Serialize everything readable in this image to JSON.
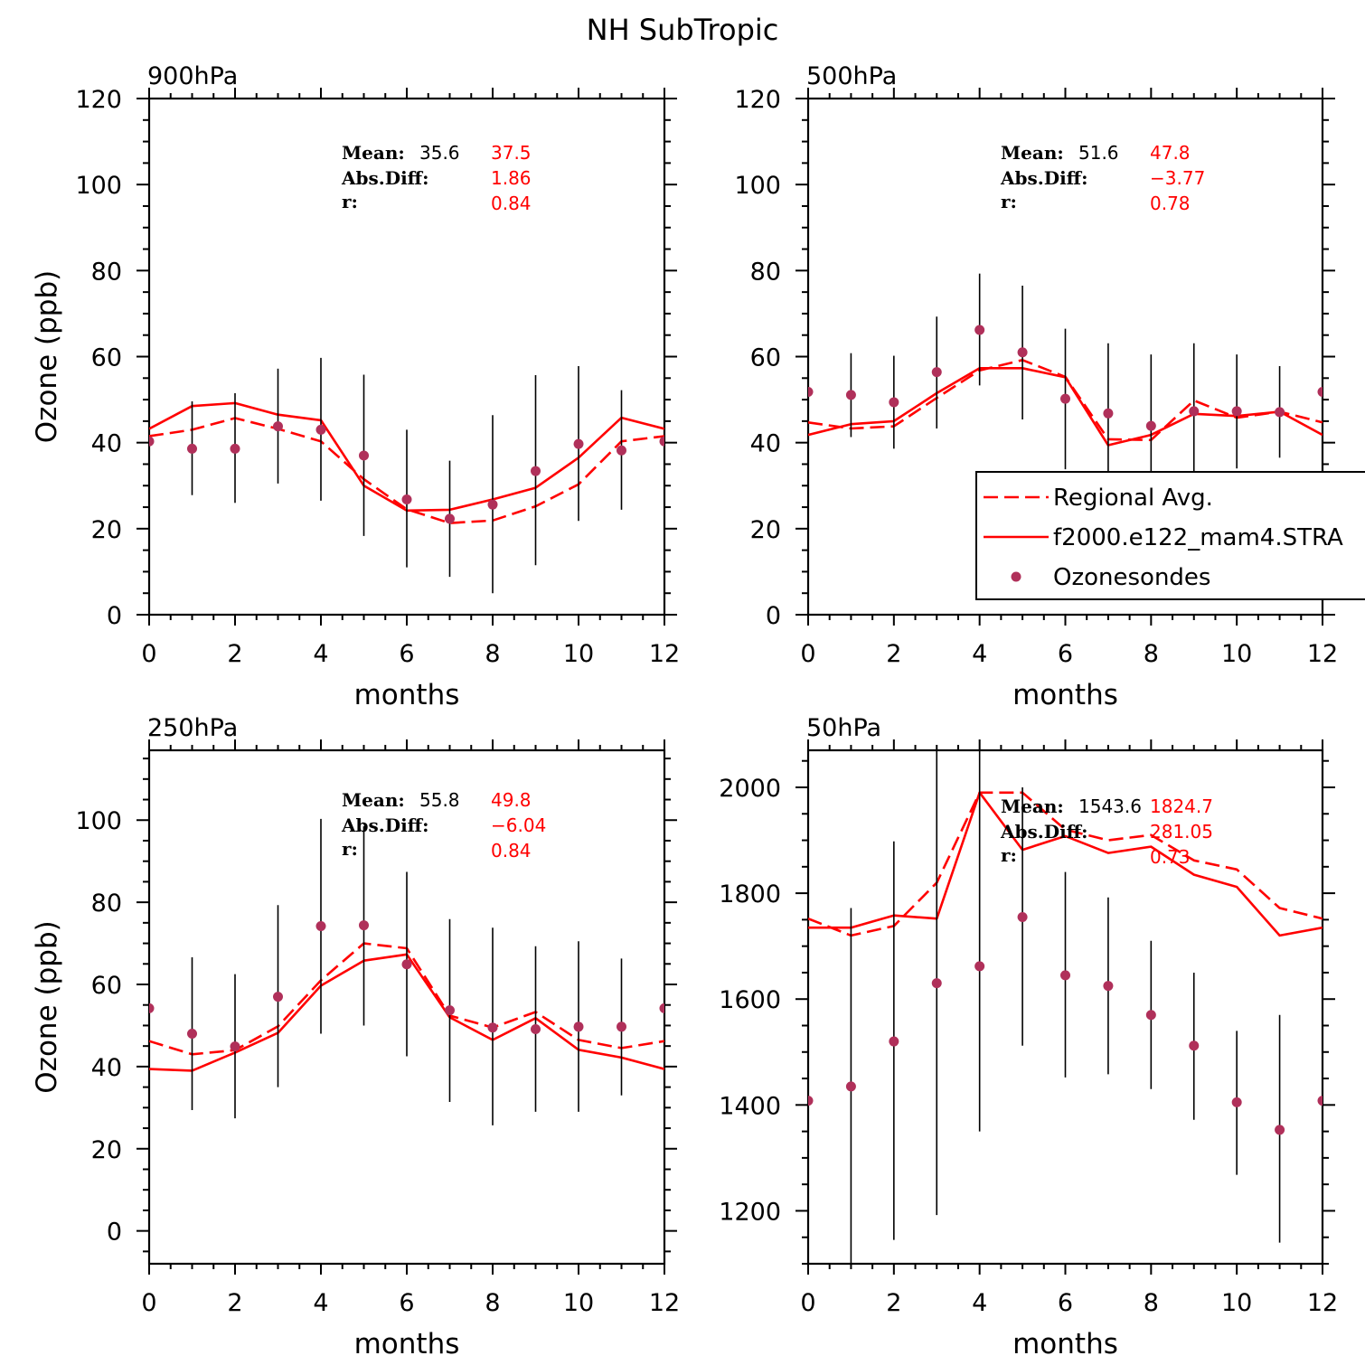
{
  "figure_title": "NH SubTropic",
  "colors": {
    "model": "#ff0000",
    "obs": "#b0305a",
    "axis": "#000000"
  },
  "legend": {
    "entries": [
      {
        "style": "dashed",
        "label": "Regional Avg."
      },
      {
        "style": "solid",
        "label": "f2000.e122_mam4.STRA"
      },
      {
        "style": "dot",
        "label": "Ozonesondes"
      }
    ]
  },
  "chart_data": [
    {
      "type": "line",
      "title": "900hPa",
      "xlabel": "months",
      "ylabel": "Ozone (ppb)",
      "xlim": [
        0,
        12
      ],
      "ylim": [
        0,
        120
      ],
      "xticks": [
        0,
        2,
        4,
        6,
        8,
        10,
        12
      ],
      "yticks": [
        0,
        20,
        40,
        60,
        80,
        100,
        120
      ],
      "x": [
        0,
        1,
        2,
        3,
        4,
        5,
        6,
        7,
        8,
        9,
        10,
        11,
        12
      ],
      "series": [
        {
          "name": "Regional Avg.",
          "style": "dashed",
          "values": [
            41.5,
            43,
            45.7,
            43.2,
            40.3,
            31.5,
            24.5,
            21.3,
            21.9,
            25.2,
            30.3,
            40.3,
            41.5
          ]
        },
        {
          "name": "f2000.e122_mam4.STRA",
          "style": "solid",
          "values": [
            43.2,
            48.5,
            49.2,
            46.5,
            45.2,
            30,
            24.2,
            24.4,
            26.8,
            29.5,
            36.5,
            45.8,
            43.2
          ]
        },
        {
          "name": "Ozonesondes",
          "style": "dot",
          "values": [
            40.3,
            38.6,
            38.6,
            43.8,
            43,
            37,
            26.8,
            22.3,
            25.6,
            33.4,
            39.7,
            38.2,
            40.3
          ],
          "err_low": [
            40.3,
            27.8,
            26,
            30.5,
            26.5,
            18.3,
            11,
            8.8,
            5,
            11.5,
            21.8,
            24.4,
            40.3
          ],
          "err_high": [
            40.3,
            49.6,
            51.5,
            57.2,
            59.7,
            55.8,
            43,
            35.8,
            46.4,
            55.7,
            57.8,
            52.2,
            40.3
          ]
        }
      ],
      "stats": {
        "mean_label": "Mean:",
        "mean_obs": "35.6",
        "mean_model": "37.5",
        "absdiff_label": "Abs.Diff:",
        "absdiff": "1.86",
        "r_label": "r:",
        "r": "0.84"
      }
    },
    {
      "type": "line",
      "title": "500hPa",
      "xlabel": "months",
      "ylabel": "",
      "xlim": [
        0,
        12
      ],
      "ylim": [
        0,
        120
      ],
      "xticks": [
        0,
        2,
        4,
        6,
        8,
        10,
        12
      ],
      "yticks": [
        0,
        20,
        40,
        60,
        80,
        100,
        120
      ],
      "x": [
        0,
        1,
        2,
        3,
        4,
        5,
        6,
        7,
        8,
        9,
        10,
        11,
        12
      ],
      "series": [
        {
          "name": "Regional Avg.",
          "style": "dashed",
          "values": [
            44.7,
            43.3,
            43.8,
            50.4,
            56.8,
            59.2,
            55.3,
            40.8,
            40.6,
            49.8,
            45.8,
            47.2,
            44.7
          ]
        },
        {
          "name": "f2000.e122_mam4.STRA",
          "style": "solid",
          "values": [
            41.8,
            44.3,
            45,
            51.5,
            57.3,
            57.3,
            55.2,
            39.4,
            41.8,
            46.7,
            46.2,
            47.2,
            41.8
          ]
        },
        {
          "name": "Ozonesondes",
          "style": "dot",
          "values": [
            51.8,
            51.1,
            49.4,
            56.4,
            66.2,
            61,
            50.2,
            46.8,
            43.9,
            47.3,
            47.3,
            47.1,
            51.8
          ],
          "err_low": [
            51.8,
            41.3,
            38.6,
            43.3,
            53.3,
            45.4,
            33.8,
            30.2,
            27.2,
            31.5,
            34,
            36.5,
            51.8
          ],
          "err_high": [
            51.8,
            60.8,
            60.2,
            69.3,
            79.3,
            76.5,
            66.5,
            63.1,
            60.5,
            63.1,
            60.5,
            57.8,
            51.8
          ]
        }
      ],
      "stats": {
        "mean_label": "Mean:",
        "mean_obs": "51.6",
        "mean_model": "47.8",
        "absdiff_label": "Abs.Diff:",
        "absdiff": "−3.77",
        "r_label": "r:",
        "r": "0.78"
      }
    },
    {
      "type": "line",
      "title": "250hPa",
      "xlabel": "months",
      "ylabel": "Ozone (ppb)",
      "xlim": [
        0,
        12
      ],
      "ylim": [
        -8,
        117
      ],
      "xticks": [
        0,
        2,
        4,
        6,
        8,
        10,
        12
      ],
      "yticks": [
        0,
        20,
        40,
        60,
        80,
        100
      ],
      "x": [
        0,
        1,
        2,
        3,
        4,
        5,
        6,
        7,
        8,
        9,
        10,
        11,
        12
      ],
      "series": [
        {
          "name": "Regional Avg.",
          "style": "dashed",
          "values": [
            46.2,
            43,
            44,
            49.8,
            61,
            70,
            68.8,
            52.4,
            49.5,
            53.3,
            46.5,
            44.5,
            46.2
          ]
        },
        {
          "name": "f2000.e122_mam4.STRA",
          "style": "solid",
          "values": [
            39.4,
            39,
            43.4,
            48.2,
            59.7,
            65.8,
            67.3,
            52,
            46.5,
            51.8,
            44.1,
            42.2,
            39.4
          ]
        },
        {
          "name": "Ozonesondes",
          "style": "dot",
          "values": [
            54.2,
            48,
            44.9,
            57,
            74.2,
            74.4,
            64.9,
            53.7,
            49.5,
            49.1,
            49.7,
            49.7,
            54.2
          ],
          "err_low": [
            54.2,
            29.4,
            27.4,
            35,
            48,
            50,
            42.5,
            31.4,
            25.7,
            29,
            29,
            33,
            54.2
          ],
          "err_high": [
            54.2,
            66.6,
            62.5,
            79.3,
            100.3,
            98.5,
            87.4,
            75.9,
            73.8,
            69.3,
            70.5,
            66.3,
            54.2
          ]
        }
      ],
      "stats": {
        "mean_label": "Mean:",
        "mean_obs": "55.8",
        "mean_model": "49.8",
        "absdiff_label": "Abs.Diff:",
        "absdiff": "−6.04",
        "r_label": "r:",
        "r": "0.84"
      }
    },
    {
      "type": "line",
      "title": "50hPa",
      "xlabel": "months",
      "ylabel": "",
      "xlim": [
        0,
        12
      ],
      "ylim": [
        1100,
        2070
      ],
      "xticks": [
        0,
        2,
        4,
        6,
        8,
        10,
        12
      ],
      "yticks": [
        1200,
        1400,
        1600,
        1800,
        2000
      ],
      "x": [
        0,
        1,
        2,
        3,
        4,
        5,
        6,
        7,
        8,
        9,
        10,
        11,
        12
      ],
      "series": [
        {
          "name": "Regional Avg.",
          "style": "dashed",
          "values": [
            1752,
            1720,
            1738,
            1820,
            1990,
            1990,
            1920,
            1900,
            1910,
            1862,
            1845,
            1772,
            1752
          ]
        },
        {
          "name": "f2000.e122_mam4.STRA",
          "style": "solid",
          "values": [
            1735,
            1735,
            1758,
            1752,
            1990,
            1882,
            1908,
            1876,
            1888,
            1835,
            1812,
            1720,
            1735
          ]
        },
        {
          "name": "Ozonesondes",
          "style": "dot",
          "values": [
            1408,
            1435,
            1520,
            1630,
            1662,
            1755,
            1645,
            1625,
            1570,
            1512,
            1405,
            1353,
            1408
          ],
          "err_low": [
            1408,
            1100,
            1145,
            1192,
            1350,
            1512,
            1452,
            1458,
            1430,
            1372,
            1268,
            1140,
            1408
          ],
          "err_high": [
            1408,
            1772,
            1898,
            2070,
            2070,
            2000,
            1840,
            1792,
            1710,
            1650,
            1540,
            1570,
            1408
          ]
        }
      ],
      "stats": {
        "mean_label": "Mean:",
        "mean_obs": "1543.6",
        "mean_model": "1824.7",
        "absdiff_label": "Abs.Diff:",
        "absdiff": "281.05",
        "r_label": "r:",
        "r": "0.73"
      }
    }
  ]
}
